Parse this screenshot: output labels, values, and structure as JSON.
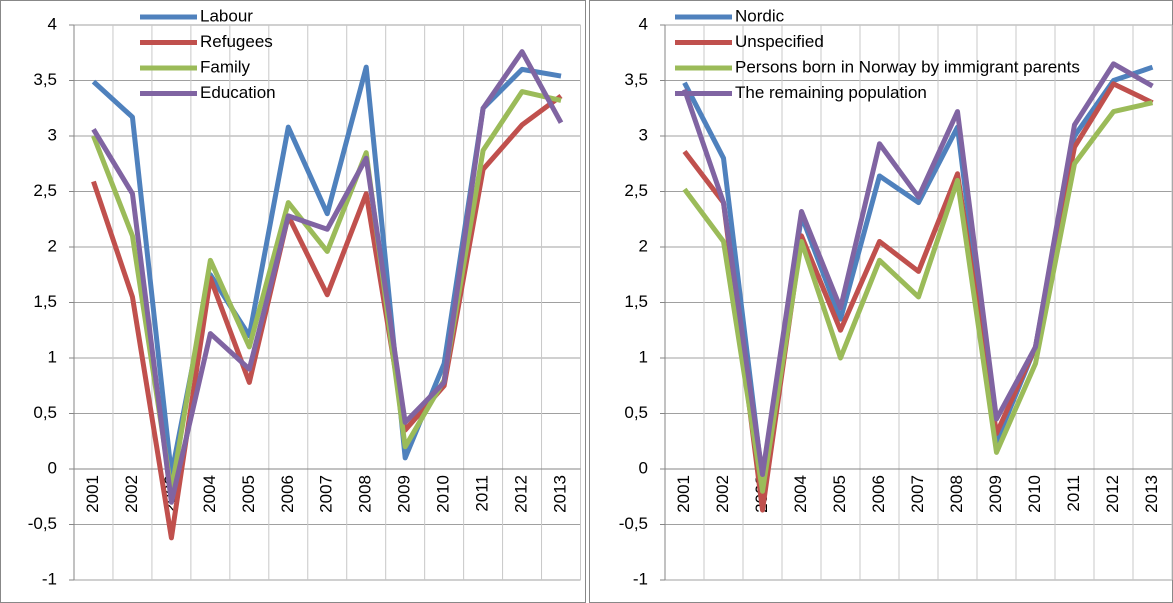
{
  "chart_data": [
    {
      "type": "line",
      "categories": [
        "2001",
        "2002",
        "2003",
        "2004",
        "2005",
        "2006",
        "2007",
        "2008",
        "2009",
        "2010",
        "2011",
        "2012",
        "2013"
      ],
      "ylim": [
        -1,
        4
      ],
      "yticks": [
        {
          "value": -1,
          "label": "-1"
        },
        {
          "value": -0.5,
          "label": "-0,5"
        },
        0,
        {
          "value": 0.5,
          "label": "0,5"
        },
        1,
        {
          "value": 1.5,
          "label": "1,5"
        },
        2,
        {
          "value": 2.5,
          "label": "2,5"
        },
        3,
        {
          "value": 3.5,
          "label": "3,5"
        },
        4
      ],
      "grid": true,
      "legend": "top-left",
      "series": [
        {
          "name": "Labour",
          "color": "#4f81bd",
          "values": [
            3.49,
            3.17,
            -0.05,
            1.75,
            1.2,
            3.08,
            2.3,
            3.62,
            0.1,
            0.95,
            3.25,
            3.6,
            3.54
          ]
        },
        {
          "name": "Refugees",
          "color": "#c0504d",
          "values": [
            2.59,
            1.55,
            -0.62,
            1.72,
            0.78,
            2.28,
            1.57,
            2.48,
            0.35,
            0.75,
            2.7,
            3.1,
            3.36
          ]
        },
        {
          "name": "Family",
          "color": "#9bbb59",
          "values": [
            3.0,
            2.1,
            -0.2,
            1.88,
            1.1,
            2.4,
            1.96,
            2.85,
            0.2,
            0.8,
            2.87,
            3.4,
            3.32
          ]
        },
        {
          "name": "Education",
          "color": "#8064a2",
          "values": [
            3.06,
            2.48,
            -0.3,
            1.22,
            0.9,
            2.28,
            2.16,
            2.8,
            0.42,
            0.78,
            3.25,
            3.76,
            3.12
          ]
        }
      ]
    },
    {
      "type": "line",
      "categories": [
        "2001",
        "2002",
        "2003",
        "2004",
        "2005",
        "2006",
        "2007",
        "2008",
        "2009",
        "2010",
        "2011",
        "2012",
        "2013"
      ],
      "ylim": [
        -1,
        4
      ],
      "yticks": [
        {
          "value": -1,
          "label": "-1"
        },
        {
          "value": -0.5,
          "label": "-0,5"
        },
        0,
        {
          "value": 0.5,
          "label": "0,5"
        },
        1,
        {
          "value": 1.5,
          "label": "1,5"
        },
        2,
        {
          "value": 2.5,
          "label": "2,5"
        },
        3,
        {
          "value": 3.5,
          "label": "3,5"
        },
        4
      ],
      "grid": true,
      "legend": "top-left",
      "series": [
        {
          "name": "Nordic",
          "color": "#4f81bd",
          "values": [
            3.48,
            2.8,
            -0.1,
            2.28,
            1.35,
            2.64,
            2.4,
            3.08,
            0.25,
            1.1,
            3.0,
            3.5,
            3.62
          ]
        },
        {
          "name": "Unspecified",
          "color": "#c0504d",
          "values": [
            2.86,
            2.4,
            -0.37,
            2.1,
            1.25,
            2.05,
            1.78,
            2.66,
            0.32,
            1.1,
            2.9,
            3.47,
            3.3
          ]
        },
        {
          "name": "Persons born in Norway by immigrant parents",
          "color": "#9bbb59",
          "values": [
            2.52,
            2.05,
            -0.2,
            2.05,
            1.0,
            1.88,
            1.55,
            2.6,
            0.15,
            0.95,
            2.75,
            3.22,
            3.3
          ]
        },
        {
          "name": "The remaining population",
          "color": "#8064a2",
          "values": [
            3.42,
            2.4,
            -0.05,
            2.32,
            1.45,
            2.93,
            2.45,
            3.22,
            0.45,
            1.1,
            3.1,
            3.65,
            3.45
          ]
        }
      ]
    }
  ]
}
